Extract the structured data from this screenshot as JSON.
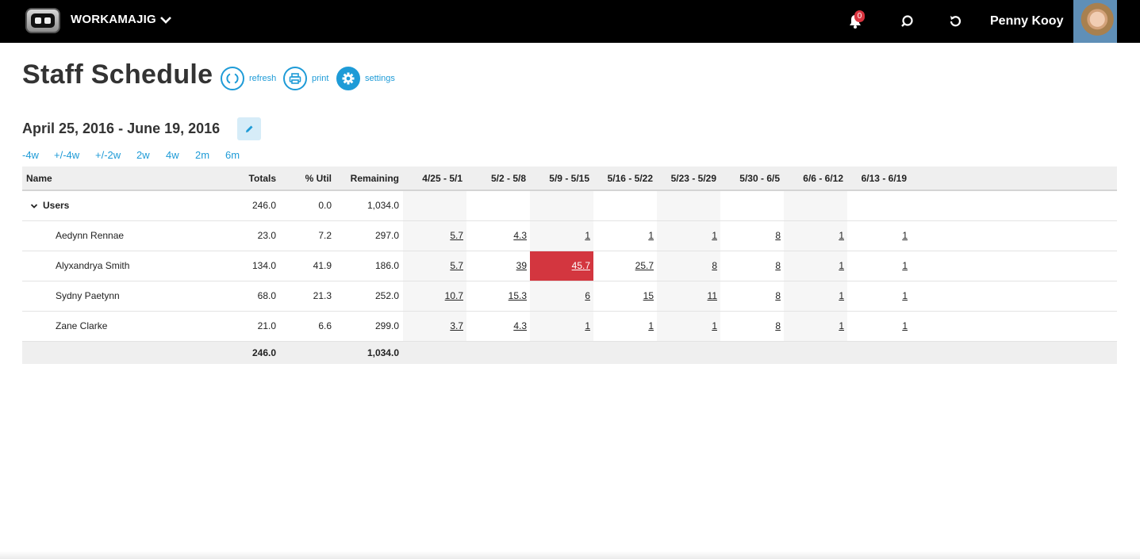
{
  "topbar": {
    "brand": "WORKAMAJIG",
    "notifications_count": "0",
    "user_name": "Penny Kooy"
  },
  "page": {
    "title": "Staff Schedule",
    "actions": {
      "refresh": "refresh",
      "print": "print",
      "settings": "settings"
    },
    "date_range": "April 25, 2016 - June 19, 2016",
    "range_links": [
      "-4w",
      "+/-4w",
      "+/-2w",
      "2w",
      "4w",
      "2m",
      "6m"
    ]
  },
  "colors": {
    "accent": "#1e9bd7",
    "over_allocated": "#d3363f",
    "topbar": "#000000"
  },
  "table": {
    "headers": {
      "name": "Name",
      "totals": "Totals",
      "util": "% Util",
      "remaining": "Remaining",
      "weeks": [
        "4/25 - 5/1",
        "5/2 - 5/8",
        "5/9 - 5/15",
        "5/16 - 5/22",
        "5/23 - 5/29",
        "5/30 - 6/5",
        "6/6 - 6/12",
        "6/13 - 6/19"
      ]
    },
    "group": {
      "name": "Users",
      "totals": "246.0",
      "util": "0.0",
      "remaining": "1,034.0"
    },
    "rows": [
      {
        "name": "Aedynn Rennae",
        "totals": "23.0",
        "util": "7.2",
        "remaining": "297.0",
        "weeks": [
          "5.7",
          "4.3",
          "1",
          "1",
          "1",
          "8",
          "1",
          "1"
        ]
      },
      {
        "name": "Alyxandrya Smith",
        "totals": "134.0",
        "util": "41.9",
        "remaining": "186.0",
        "weeks": [
          "5.7",
          "39",
          "45.7",
          "25.7",
          "8",
          "8",
          "1",
          "1"
        ]
      },
      {
        "name": "Sydny Paetynn",
        "totals": "68.0",
        "util": "21.3",
        "remaining": "252.0",
        "weeks": [
          "10.7",
          "15.3",
          "6",
          "15",
          "11",
          "8",
          "1",
          "1"
        ]
      },
      {
        "name": "Zane Clarke",
        "totals": "21.0",
        "util": "6.6",
        "remaining": "299.0",
        "weeks": [
          "3.7",
          "4.3",
          "1",
          "1",
          "1",
          "8",
          "1",
          "1"
        ]
      }
    ],
    "footer": {
      "totals": "246.0",
      "remaining": "1,034.0"
    }
  }
}
